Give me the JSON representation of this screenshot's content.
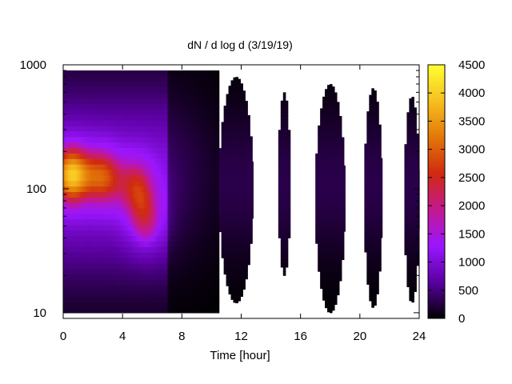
{
  "chart_data": {
    "type": "heatmap",
    "title": "dN / d log d (3/19/19)",
    "xlabel": "Time [hour]",
    "ylabel": "",
    "xlim": [
      0,
      24
    ],
    "ylim": [
      9,
      1000
    ],
    "y_scale": "log",
    "x_ticks": [
      0,
      4,
      8,
      12,
      16,
      20,
      24
    ],
    "x_tick_labels": [
      "0",
      "4",
      "8",
      "12",
      "16",
      "20",
      "24"
    ],
    "y_ticks": [
      10,
      100,
      1000
    ],
    "y_tick_labels": [
      "10",
      "100",
      "1000"
    ],
    "colorbar": {
      "range": [
        0,
        4500
      ],
      "ticks": [
        0,
        500,
        1000,
        1500,
        2000,
        2500,
        3000,
        3500,
        4000,
        4500
      ],
      "tick_labels": [
        "0",
        "500",
        "1000",
        "1500",
        "2000",
        "2500",
        "3000",
        "3500",
        "4000",
        "4500"
      ],
      "colormap": [
        "#000000",
        "#5a00a0",
        "#9a16ff",
        "#c41890",
        "#d02a10",
        "#e27808",
        "#f7c020",
        "#ffff30"
      ]
    },
    "grid": false,
    "legend": "colorbar-right",
    "data_segments": [
      {
        "x_start": 0.0,
        "x_end": 10.5,
        "d_min": 10,
        "d_max": 900
      },
      {
        "x_start": 10.5,
        "x_end": 12.8,
        "d_min": 12,
        "d_max": 800
      },
      {
        "x_start": 14.5,
        "x_end": 15.3,
        "d_min": 20,
        "d_max": 600
      },
      {
        "x_start": 17.0,
        "x_end": 19.0,
        "d_min": 10,
        "d_max": 700
      },
      {
        "x_start": 20.3,
        "x_end": 21.5,
        "d_min": 11,
        "d_max": 650
      },
      {
        "x_start": 23.0,
        "x_end": 24.0,
        "d_min": 12,
        "d_max": 560
      }
    ],
    "hotspots": [
      {
        "time": 0.5,
        "d": 130,
        "value": 3800
      },
      {
        "time": 2.7,
        "d": 125,
        "value": 2700
      },
      {
        "time": 5.0,
        "d": 110,
        "value": 2100
      },
      {
        "time": 5.6,
        "d": 55,
        "value": 1800
      }
    ]
  }
}
